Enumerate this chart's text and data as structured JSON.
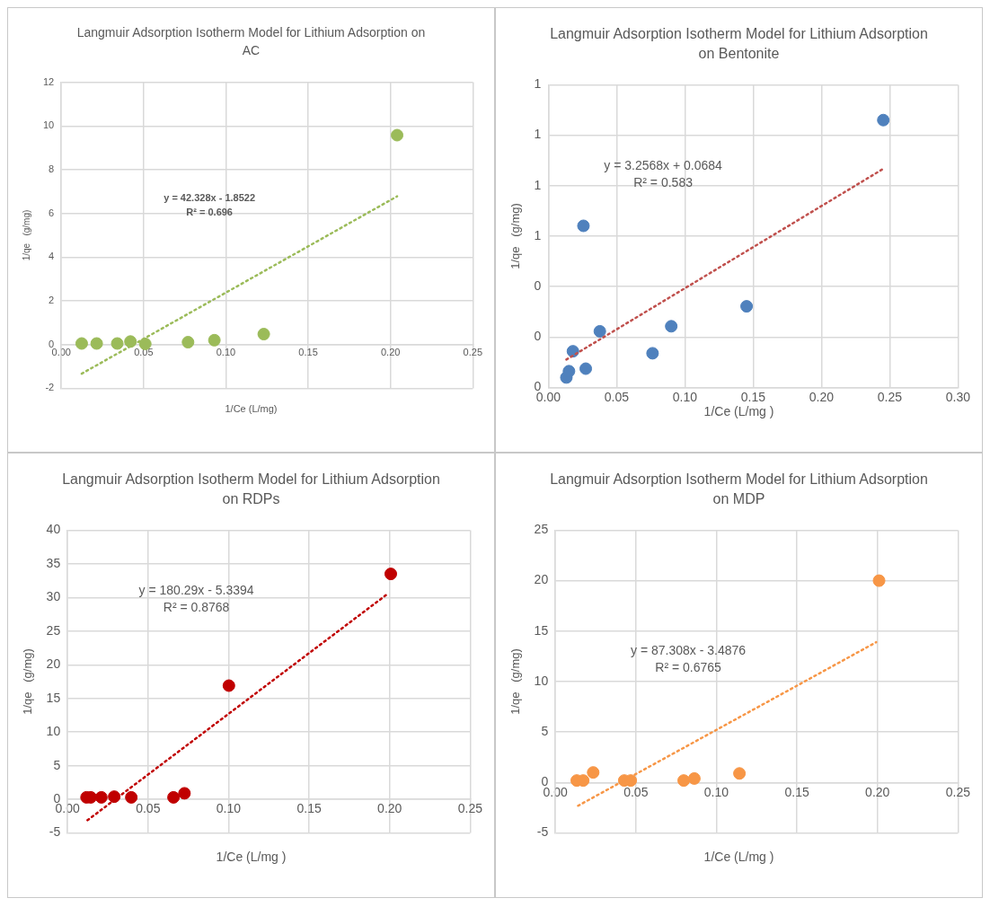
{
  "chart_data": [
    {
      "type": "scatter",
      "title": "Langmuir Adsorption Isotherm Model for Lithium Adsorption on AC",
      "xlabel": "1/Ce  (L/mg)",
      "ylabel": "1/qe   (g/mg)",
      "annotations": [
        "y = 42.328x - 1.8522",
        "R² = 0.696"
      ],
      "series": [
        {
          "type": "scatter",
          "color": "#9bbb59",
          "marker": "circle",
          "x": [
            0.0124,
            0.0215,
            0.034,
            0.042,
            0.051,
            0.077,
            0.093,
            0.123,
            0.204
          ],
          "values": [
            0.05,
            0.05,
            0.05,
            0.14,
            0.03,
            0.11,
            0.2,
            0.48,
            9.58
          ]
        },
        {
          "type": "line",
          "color": "#9bbb59",
          "marker": "none",
          "line_style": "dotted",
          "x": [
            0.0124,
            0.204
          ],
          "values": [
            -1.33,
            6.78
          ]
        }
      ],
      "xlim": [
        0,
        0.25
      ],
      "xticks": [
        {
          "value": 0,
          "label": "0.00"
        },
        {
          "value": 0.05,
          "label": "0.05"
        },
        {
          "value": 0.1,
          "label": "0.10"
        },
        {
          "value": 0.15,
          "label": "0.15"
        },
        {
          "value": 0.2,
          "label": "0.20"
        },
        {
          "value": 0.25,
          "label": "0.25"
        }
      ],
      "ylim": [
        -2,
        12
      ],
      "yticks": [
        -2,
        0,
        2,
        4,
        6,
        8,
        10,
        12
      ],
      "grid": true
    },
    {
      "type": "scatter",
      "title": "Langmuir Adsorption Isotherm Model for Lithium Adsorption on Bentonite",
      "xlabel": "1/Ce (L/mg )",
      "ylabel": "1/qe   (g/mg)",
      "annotations": [
        "y = 3.2568x + 0.0684",
        "R² = 0.583"
      ],
      "series": [
        {
          "type": "scatter",
          "color": "#4f81bd",
          "marker": "circle",
          "x": [
            0.0132,
            0.0151,
            0.018,
            0.0257,
            0.0274,
            0.0377,
            0.0763,
            0.09,
            0.1452,
            0.2453
          ],
          "values": [
            0.04,
            0.065,
            0.144,
            0.641,
            0.075,
            0.223,
            0.136,
            0.243,
            0.322,
            1.06
          ]
        },
        {
          "type": "line",
          "color": "#c0504d",
          "marker": "none",
          "line_style": "dotted",
          "x": [
            0.0132,
            0.2453
          ],
          "values": [
            0.111,
            0.867
          ]
        }
      ],
      "xlim": [
        0,
        0.3
      ],
      "xticks": [
        {
          "value": 0,
          "label": "0.00"
        },
        {
          "value": 0.05,
          "label": "0.05"
        },
        {
          "value": 0.1,
          "label": "0.10"
        },
        {
          "value": 0.15,
          "label": "0.15"
        },
        {
          "value": 0.2,
          "label": "0.20"
        },
        {
          "value": 0.25,
          "label": "0.25"
        },
        {
          "value": 0.3,
          "label": "0.30"
        }
      ],
      "ylim": [
        0,
        1.2
      ],
      "yticks": [
        0,
        {
          "value": 0.2,
          "label": "0"
        },
        {
          "value": 0.4,
          "label": "0"
        },
        {
          "value": 0.6,
          "label": "1"
        },
        {
          "value": 0.8,
          "label": "1"
        },
        {
          "value": 1.0,
          "label": "1"
        },
        {
          "value": 1.2,
          "label": "1"
        }
      ],
      "grid": true
    },
    {
      "type": "scatter",
      "title": "Langmuir Adsorption Isotherm Model for Lithium Adsorption on RDPs",
      "xlabel": "1/Ce (L/mg )",
      "ylabel": "1/qe   (g/mg)",
      "annotations": [
        "y = 180.29x - 5.3394",
        "R² = 0.8768"
      ],
      "series": [
        {
          "type": "scatter",
          "color": "#c00000",
          "marker": "circle",
          "x": [
            0.0118,
            0.0144,
            0.021,
            0.029,
            0.0396,
            0.0658,
            0.0726,
            0.1002,
            0.2007
          ],
          "values": [
            0.3,
            0.3,
            0.3,
            0.4,
            0.3,
            0.3,
            0.9,
            16.9,
            33.5
          ]
        },
        {
          "type": "line",
          "color": "#c00000",
          "marker": "none",
          "line_style": "dotted",
          "x": [
            0.0124,
            0.198
          ],
          "values": [
            -3.1,
            30.4
          ]
        }
      ],
      "xlim": [
        0,
        0.25
      ],
      "xticks": [
        {
          "value": 0,
          "label": "0.00"
        },
        {
          "value": 0.05,
          "label": "0.05"
        },
        {
          "value": 0.1,
          "label": "0.10"
        },
        {
          "value": 0.15,
          "label": "0.15"
        },
        {
          "value": 0.2,
          "label": "0.20"
        },
        {
          "value": 0.25,
          "label": "0.25"
        }
      ],
      "ylim": [
        -5,
        40
      ],
      "yticks": [
        -5,
        0,
        5,
        10,
        15,
        20,
        25,
        30,
        35,
        40
      ],
      "grid": true
    },
    {
      "type": "scatter",
      "title": "Langmuir Adsorption Isotherm Model for Lithium Adsorption on MDP",
      "xlabel": "1/Ce (L/mg )",
      "ylabel": "1/qe   (g/mg)",
      "annotations": [
        "y = 87.308x - 3.4876",
        "R² = 0.6765"
      ],
      "series": [
        {
          "type": "scatter",
          "color": "#f79646",
          "marker": "circle",
          "x": [
            0.0133,
            0.0173,
            0.0235,
            0.0428,
            0.0468,
            0.0797,
            0.0863,
            0.1143,
            0.201
          ],
          "values": [
            0.2,
            0.2,
            1.0,
            0.2,
            0.2,
            0.2,
            0.4,
            0.9,
            20.0
          ]
        },
        {
          "type": "line",
          "color": "#f79646",
          "marker": "none",
          "line_style": "dotted",
          "x": [
            0.0141,
            0.1992
          ],
          "values": [
            -2.3,
            13.9
          ]
        }
      ],
      "xlim": [
        0,
        0.25
      ],
      "xticks": [
        {
          "value": 0,
          "label": "0.00"
        },
        {
          "value": 0.05,
          "label": "0.05"
        },
        {
          "value": 0.1,
          "label": "0.10"
        },
        {
          "value": 0.15,
          "label": "0.15"
        },
        {
          "value": 0.2,
          "label": "0.20"
        },
        {
          "value": 0.25,
          "label": "0.25"
        }
      ],
      "ylim": [
        -5,
        25
      ],
      "yticks": [
        -5,
        0,
        5,
        10,
        15,
        20,
        25
      ],
      "grid": true
    }
  ]
}
